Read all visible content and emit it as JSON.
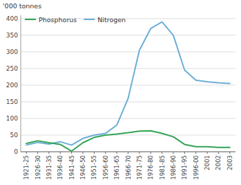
{
  "chart_data": {
    "type": "line",
    "y_label": "'000 tonnes",
    "categories": [
      "1921-25",
      "1926-30",
      "1931-35",
      "1936-40",
      "1941-45",
      "1946-50",
      "1951-55",
      "1956-60",
      "1961-65",
      "1966-70",
      "1971-75",
      "1976-80",
      "1981-85",
      "1986-90",
      "1991-95",
      "1996-00",
      "2001",
      "2002",
      "2003"
    ],
    "series": [
      {
        "name": "Phosphorus",
        "color": "#31a354",
        "values": [
          25,
          33,
          27,
          22,
          2,
          27,
          43,
          50,
          53,
          57,
          62,
          63,
          55,
          45,
          22,
          15,
          15,
          13,
          13
        ]
      },
      {
        "name": "Nitrogen",
        "color": "#6baed6",
        "values": [
          20,
          28,
          23,
          30,
          20,
          40,
          50,
          55,
          80,
          160,
          305,
          370,
          390,
          350,
          245,
          215,
          210,
          207,
          205
        ]
      }
    ],
    "ylim": [
      0,
      410
    ],
    "yticks": [
      0,
      50,
      100,
      150,
      200,
      250,
      300,
      350,
      400
    ],
    "grid": true,
    "legend": "top-left"
  }
}
